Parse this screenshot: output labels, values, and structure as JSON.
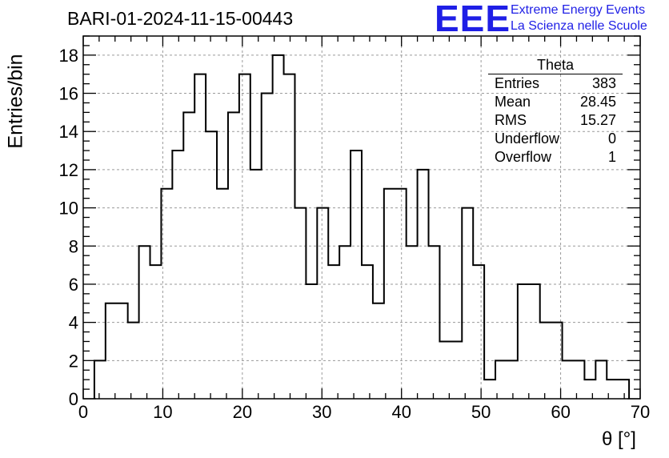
{
  "header": {
    "title": "BARI-01-2024-11-15-00443"
  },
  "logo": {
    "mark": "EEE",
    "line1": "Extreme Energy Events",
    "line2": "La Scienza nelle Scuole",
    "color": "#1f1fe6"
  },
  "stats": {
    "title": "Theta",
    "rows": [
      {
        "label": "Entries",
        "value": "383"
      },
      {
        "label": "Mean",
        "value": "28.45"
      },
      {
        "label": "RMS",
        "value": "15.27"
      },
      {
        "label": "Underflow",
        "value": "0"
      },
      {
        "label": "Overflow",
        "value": "1"
      }
    ]
  },
  "chart_data": {
    "type": "bar",
    "style": "step-histogram",
    "title": "BARI-01-2024-11-15-00443",
    "xlabel": "θ [°]",
    "ylabel": "Entries/bin",
    "xlim": [
      0,
      70
    ],
    "ylim": [
      0,
      19
    ],
    "grid": true,
    "bin_start": 1.4,
    "bin_width": 1.4,
    "values": [
      2,
      5,
      5,
      4,
      8,
      7,
      11,
      13,
      15,
      17,
      14,
      11,
      15,
      17,
      12,
      16,
      18,
      17,
      10,
      6,
      10,
      7,
      8,
      13,
      7,
      5,
      11,
      11,
      8,
      12,
      8,
      3,
      3,
      10,
      7,
      1,
      2,
      2,
      6,
      6,
      4,
      4,
      2,
      2,
      1,
      2,
      1,
      1
    ],
    "x_ticks": [
      0,
      10,
      20,
      30,
      40,
      50,
      60,
      70
    ],
    "y_ticks": [
      0,
      2,
      4,
      6,
      8,
      10,
      12,
      14,
      16,
      18
    ],
    "line_color": "#000000",
    "grid_color": "#9a9a9a"
  }
}
